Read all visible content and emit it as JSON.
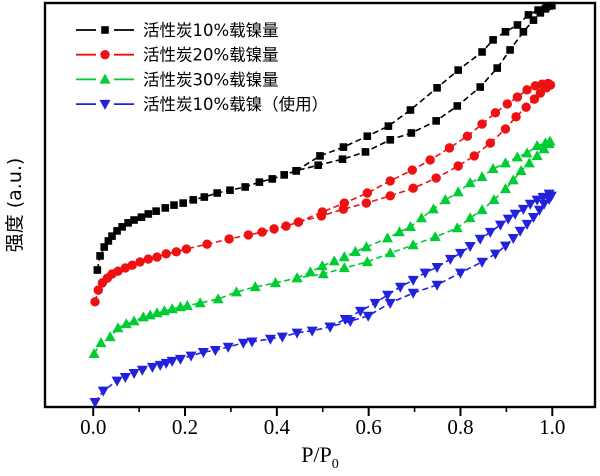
{
  "chart_data": {
    "type": "line",
    "description": "Nitrogen adsorption-desorption isotherms (type IV with hysteresis) for nickel-loaded activated carbon samples",
    "xlabel_main": "P/P",
    "xlabel_sub": "0",
    "ylabel": "强度 (a.u.)",
    "x_ticks": [
      0.0,
      0.2,
      0.4,
      0.6,
      0.8,
      1.0
    ],
    "x_tick_labels": [
      "0.0",
      "0.2",
      "0.4",
      "0.6",
      "0.8",
      "1.0"
    ],
    "x_minor_ticks": [
      0.1,
      0.3,
      0.5,
      0.7,
      0.9
    ],
    "x_range": [
      -0.105,
      1.093
    ],
    "u_range": [
      0,
      100.25
    ],
    "grid": false,
    "legend_position": "top-left",
    "axis_color": "#000000",
    "series": [
      {
        "id": "ac-10-ni",
        "name": "活性炭10%载镍量",
        "color": "#000000",
        "marker": "square",
        "branches": {
          "adsorption": [
            [
              0.009,
              34.0
            ],
            [
              0.015,
              37.5
            ],
            [
              0.024,
              39.7
            ],
            [
              0.033,
              41.2
            ],
            [
              0.041,
              42.4
            ],
            [
              0.052,
              43.7
            ],
            [
              0.063,
              44.7
            ],
            [
              0.076,
              45.7
            ],
            [
              0.089,
              46.4
            ],
            [
              0.105,
              47.1
            ],
            [
              0.12,
              47.9
            ],
            [
              0.137,
              48.6
            ],
            [
              0.157,
              49.4
            ],
            [
              0.176,
              50.1
            ],
            [
              0.196,
              50.6
            ],
            [
              0.218,
              51.4
            ],
            [
              0.242,
              52.1
            ],
            [
              0.27,
              53.1
            ],
            [
              0.298,
              53.8
            ],
            [
              0.331,
              54.6
            ],
            [
              0.362,
              55.8
            ],
            [
              0.39,
              56.6
            ],
            [
              0.416,
              57.6
            ],
            [
              0.442,
              58.6
            ],
            [
              0.49,
              60.0
            ],
            [
              0.543,
              61.5
            ],
            [
              0.593,
              63.3
            ],
            [
              0.647,
              66.3
            ],
            [
              0.693,
              68.0
            ],
            [
              0.747,
              71.0
            ],
            [
              0.793,
              74.7
            ],
            [
              0.843,
              79.4
            ],
            [
              0.88,
              84.1
            ],
            [
              0.908,
              88.6
            ],
            [
              0.937,
              93.1
            ],
            [
              0.959,
              96.0
            ],
            [
              0.974,
              97.8
            ],
            [
              0.985,
              98.8
            ],
            [
              0.993,
              99.5
            ]
          ],
          "desorption": [
            [
              0.442,
              58.6
            ],
            [
              0.494,
              62.3
            ],
            [
              0.545,
              64.5
            ],
            [
              0.597,
              67.2
            ],
            [
              0.643,
              69.7
            ],
            [
              0.691,
              73.7
            ],
            [
              0.749,
              79.2
            ],
            [
              0.795,
              83.6
            ],
            [
              0.847,
              88.1
            ],
            [
              0.871,
              91.1
            ],
            [
              0.898,
              93.1
            ],
            [
              0.924,
              94.8
            ],
            [
              0.948,
              97.3
            ],
            [
              0.969,
              98.5
            ],
            [
              0.987,
              99.3
            ],
            [
              0.999,
              99.6
            ]
          ]
        }
      },
      {
        "id": "ac-20-ni",
        "name": "活性炭20%载镍量",
        "color": "#ee1111",
        "marker": "circle",
        "branches": {
          "adsorption": [
            [
              0.004,
              26.1
            ],
            [
              0.011,
              29.0
            ],
            [
              0.02,
              30.8
            ],
            [
              0.031,
              32.0
            ],
            [
              0.041,
              33.0
            ],
            [
              0.054,
              33.7
            ],
            [
              0.07,
              34.5
            ],
            [
              0.085,
              35.2
            ],
            [
              0.102,
              36.0
            ],
            [
              0.12,
              36.7
            ],
            [
              0.139,
              37.2
            ],
            [
              0.159,
              38.0
            ],
            [
              0.181,
              38.5
            ],
            [
              0.203,
              39.2
            ],
            [
              0.248,
              40.4
            ],
            [
              0.296,
              41.7
            ],
            [
              0.338,
              42.7
            ],
            [
              0.368,
              43.4
            ],
            [
              0.394,
              44.2
            ],
            [
              0.42,
              44.9
            ],
            [
              0.447,
              45.9
            ],
            [
              0.497,
              47.4
            ],
            [
              0.545,
              49.1
            ],
            [
              0.595,
              50.6
            ],
            [
              0.647,
              52.4
            ],
            [
              0.697,
              54.3
            ],
            [
              0.747,
              56.8
            ],
            [
              0.795,
              59.8
            ],
            [
              0.83,
              62.3
            ],
            [
              0.865,
              65.5
            ],
            [
              0.898,
              69.0
            ],
            [
              0.921,
              72.0
            ],
            [
              0.943,
              74.4
            ],
            [
              0.961,
              76.4
            ],
            [
              0.974,
              77.9
            ],
            [
              0.987,
              79.2
            ],
            [
              0.996,
              79.9
            ]
          ],
          "desorption": [
            [
              0.447,
              45.9
            ],
            [
              0.499,
              48.4
            ],
            [
              0.547,
              50.6
            ],
            [
              0.597,
              53.1
            ],
            [
              0.647,
              56.1
            ],
            [
              0.695,
              58.8
            ],
            [
              0.734,
              61.3
            ],
            [
              0.776,
              64.3
            ],
            [
              0.815,
              67.2
            ],
            [
              0.847,
              70.2
            ],
            [
              0.876,
              73.0
            ],
            [
              0.902,
              75.2
            ],
            [
              0.924,
              76.9
            ],
            [
              0.945,
              78.7
            ],
            [
              0.963,
              79.7
            ],
            [
              0.978,
              80.1
            ],
            [
              0.991,
              80.3
            ]
          ]
        }
      },
      {
        "id": "ac-30-ni",
        "name": "活性炭30%载镍量",
        "color": "#00cc33",
        "marker": "triangle-up",
        "branches": {
          "adsorption": [
            [
              0.002,
              13.2
            ],
            [
              0.017,
              15.9
            ],
            [
              0.037,
              17.4
            ],
            [
              0.054,
              19.6
            ],
            [
              0.072,
              20.6
            ],
            [
              0.089,
              21.3
            ],
            [
              0.109,
              22.3
            ],
            [
              0.124,
              22.8
            ],
            [
              0.139,
              23.3
            ],
            [
              0.155,
              23.8
            ],
            [
              0.172,
              24.3
            ],
            [
              0.19,
              24.8
            ],
            [
              0.205,
              25.1
            ],
            [
              0.233,
              25.8
            ],
            [
              0.272,
              26.8
            ],
            [
              0.312,
              28.5
            ],
            [
              0.353,
              29.8
            ],
            [
              0.397,
              30.8
            ],
            [
              0.444,
              32.0
            ],
            [
              0.501,
              33.0
            ],
            [
              0.547,
              34.5
            ],
            [
              0.597,
              36.0
            ],
            [
              0.647,
              38.2
            ],
            [
              0.697,
              40.2
            ],
            [
              0.745,
              42.2
            ],
            [
              0.793,
              44.4
            ],
            [
              0.821,
              46.9
            ],
            [
              0.847,
              48.9
            ],
            [
              0.873,
              51.4
            ],
            [
              0.898,
              54.1
            ],
            [
              0.915,
              56.3
            ],
            [
              0.932,
              58.6
            ],
            [
              0.95,
              60.5
            ],
            [
              0.967,
              62.3
            ],
            [
              0.982,
              64.0
            ],
            [
              0.993,
              65.3
            ]
          ],
          "desorption": [
            [
              0.444,
              32.0
            ],
            [
              0.473,
              33.5
            ],
            [
              0.499,
              35.0
            ],
            [
              0.525,
              36.2
            ],
            [
              0.547,
              37.2
            ],
            [
              0.571,
              38.5
            ],
            [
              0.595,
              39.7
            ],
            [
              0.641,
              41.9
            ],
            [
              0.667,
              43.4
            ],
            [
              0.691,
              44.7
            ],
            [
              0.715,
              46.9
            ],
            [
              0.741,
              49.1
            ],
            [
              0.767,
              51.4
            ],
            [
              0.795,
              53.3
            ],
            [
              0.821,
              55.6
            ],
            [
              0.847,
              57.1
            ],
            [
              0.871,
              59.1
            ],
            [
              0.898,
              60.5
            ],
            [
              0.924,
              62.0
            ],
            [
              0.945,
              63.0
            ],
            [
              0.967,
              64.8
            ],
            [
              0.985,
              65.5
            ],
            [
              0.995,
              65.9
            ]
          ]
        }
      },
      {
        "id": "ac-10-ni-used",
        "name": "活性炭10%载镍（使用）",
        "color": "#2222dd",
        "marker": "triangle-down",
        "branches": {
          "adsorption": [
            [
              0.004,
              1.2
            ],
            [
              0.022,
              4.0
            ],
            [
              0.052,
              6.5
            ],
            [
              0.07,
              7.4
            ],
            [
              0.089,
              8.4
            ],
            [
              0.107,
              9.2
            ],
            [
              0.129,
              9.9
            ],
            [
              0.146,
              10.4
            ],
            [
              0.159,
              10.9
            ],
            [
              0.172,
              11.4
            ],
            [
              0.19,
              11.9
            ],
            [
              0.213,
              12.7
            ],
            [
              0.24,
              13.6
            ],
            [
              0.266,
              14.1
            ],
            [
              0.294,
              14.9
            ],
            [
              0.327,
              15.9
            ],
            [
              0.346,
              16.2
            ],
            [
              0.386,
              16.9
            ],
            [
              0.412,
              17.4
            ],
            [
              0.444,
              18.4
            ],
            [
              0.477,
              18.9
            ],
            [
              0.516,
              19.9
            ],
            [
              0.56,
              21.3
            ],
            [
              0.599,
              22.6
            ],
            [
              0.647,
              25.8
            ],
            [
              0.697,
              28.3
            ],
            [
              0.749,
              30.3
            ],
            [
              0.8,
              33.3
            ],
            [
              0.847,
              36.0
            ],
            [
              0.876,
              38.0
            ],
            [
              0.898,
              40.0
            ],
            [
              0.915,
              41.9
            ],
            [
              0.93,
              43.7
            ],
            [
              0.945,
              45.4
            ],
            [
              0.959,
              47.1
            ],
            [
              0.972,
              48.9
            ],
            [
              0.982,
              50.4
            ],
            [
              0.993,
              51.6
            ],
            [
              0.998,
              52.4
            ]
          ],
          "desorption": [
            [
              0.516,
              19.9
            ],
            [
              0.549,
              21.8
            ],
            [
              0.582,
              23.8
            ],
            [
              0.614,
              25.8
            ],
            [
              0.641,
              27.8
            ],
            [
              0.669,
              29.8
            ],
            [
              0.697,
              31.5
            ],
            [
              0.723,
              33.3
            ],
            [
              0.749,
              34.7
            ],
            [
              0.778,
              36.7
            ],
            [
              0.8,
              38.2
            ],
            [
              0.821,
              39.9
            ],
            [
              0.843,
              41.7
            ],
            [
              0.865,
              43.4
            ],
            [
              0.887,
              45.2
            ],
            [
              0.904,
              46.7
            ],
            [
              0.919,
              47.9
            ],
            [
              0.937,
              49.1
            ],
            [
              0.952,
              50.4
            ],
            [
              0.967,
              51.4
            ],
            [
              0.98,
              52.1
            ],
            [
              0.993,
              52.9
            ]
          ]
        }
      }
    ]
  }
}
